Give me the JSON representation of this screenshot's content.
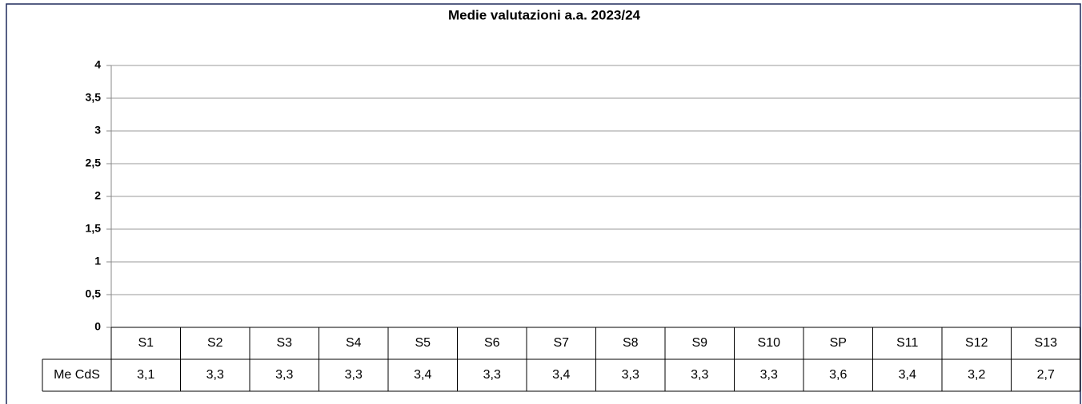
{
  "chart_data": {
    "type": "bar",
    "title": "Medie valutazioni a.a. 2023/24",
    "categories": [
      "S1",
      "S2",
      "S3",
      "S4",
      "S5",
      "S6",
      "S7",
      "S8",
      "S9",
      "S10",
      "SP",
      "S11",
      "S12",
      "S13"
    ],
    "series": [
      {
        "name": "Me CdS",
        "color": "none",
        "values": [
          3.1,
          3.3,
          3.3,
          3.3,
          3.4,
          3.3,
          3.4,
          3.3,
          3.3,
          3.3,
          3.6,
          3.4,
          3.2,
          2.7
        ],
        "value_labels": [
          "3,1",
          "3,3",
          "3,3",
          "3,3",
          "3,4",
          "3,3",
          "3,4",
          "3,3",
          "3,3",
          "3,3",
          "3,6",
          "3,4",
          "3,2",
          "2,7"
        ]
      }
    ],
    "ylim": [
      0,
      4
    ],
    "yticks": [
      0,
      {
        "value": 0.5,
        "label": "0,5"
      },
      1,
      {
        "value": 1.5,
        "label": "1,5"
      },
      2,
      {
        "value": 2.5,
        "label": "2,5"
      },
      3,
      {
        "value": 3.5,
        "label": "3,5"
      },
      4
    ],
    "grid": true,
    "data_table": true
  }
}
